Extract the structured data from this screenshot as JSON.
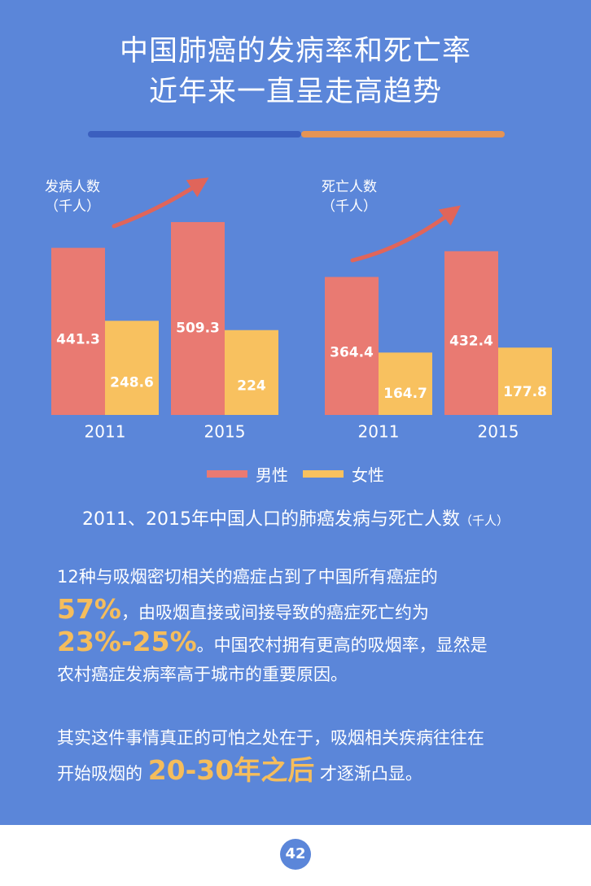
{
  "title": {
    "line1": "中国肺癌的发病率和死亡率",
    "line2": "近年来一直呈走高趋势"
  },
  "colors": {
    "background": "#5b86d9",
    "male": "#e97a72",
    "female": "#f8c15f",
    "divider_left": "#3b5fbf",
    "divider_right": "#e59455",
    "arrow": "#e0655a",
    "highlight": "#f5bd5c"
  },
  "chart_data": [
    {
      "type": "bar",
      "ylabel_line1": "发病人数",
      "ylabel_line2": "（千人）",
      "categories": [
        "2011",
        "2015"
      ],
      "series": [
        {
          "name": "男性",
          "values": [
            441.3,
            509.3
          ]
        },
        {
          "name": "女性",
          "values": [
            248.6,
            224
          ]
        }
      ]
    },
    {
      "type": "bar",
      "ylabel_line1": "死亡人数",
      "ylabel_line2": "（千人）",
      "categories": [
        "2011",
        "2015"
      ],
      "series": [
        {
          "name": "男性",
          "values": [
            364.4,
            432.4
          ]
        },
        {
          "name": "女性",
          "values": [
            164.7,
            177.8
          ]
        }
      ]
    }
  ],
  "legend": {
    "male": "男性",
    "female": "女性"
  },
  "caption": {
    "main": "2011、2015年中国人口的肺癌发病与死亡人数",
    "unit": "（千人）"
  },
  "paragraph1": {
    "line1": "12种与吸烟密切相关的癌症占到了中国所有癌症的",
    "highlight1": "57%",
    "line2_rest": "，由吸烟直接或间接导致的癌症死亡约为",
    "highlight2": "23%-25%",
    "line3_rest": "。中国农村拥有更高的吸烟率，显然是",
    "line4": "农村癌症发病率高于城市的重要原因。"
  },
  "paragraph2": {
    "line1": "其实这件事情真正的可怕之处在于，吸烟相关疾病往往在",
    "line2_pre": "开始吸烟的",
    "highlight": "20-30年之后",
    "line2_post": "才逐渐凸显。"
  },
  "page_number": "42"
}
